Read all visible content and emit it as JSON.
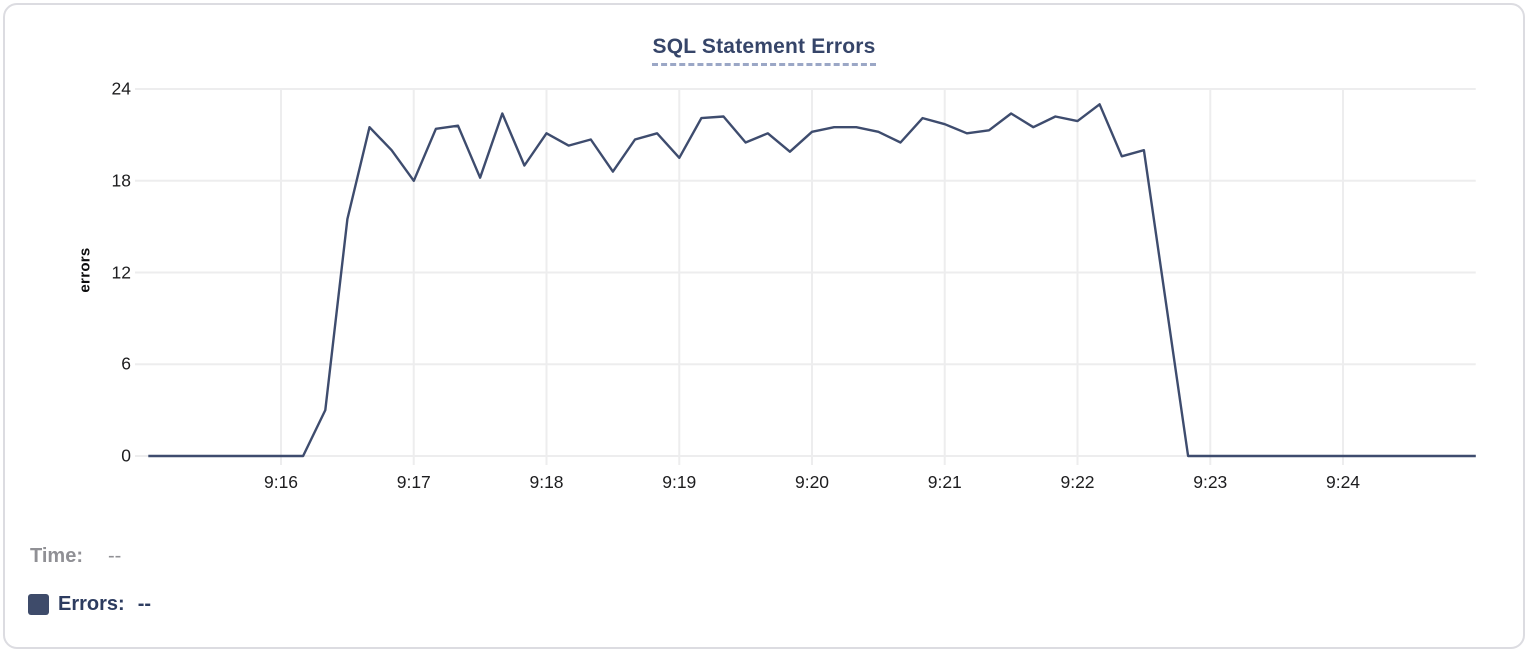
{
  "chart": {
    "title": "SQL Statement Errors",
    "ylabel": "errors"
  },
  "readout": {
    "time_label": "Time:",
    "time_value": "--",
    "errors_label": "Errors:",
    "errors_value": "--"
  },
  "chart_data": {
    "type": "line",
    "title": "SQL Statement Errors",
    "xlabel": "",
    "ylabel": "errors",
    "ylim": [
      0,
      24
    ],
    "y_ticks": [
      0,
      6,
      12,
      18,
      24
    ],
    "x_tick_labels": [
      "9:16",
      "9:17",
      "9:18",
      "9:19",
      "9:20",
      "9:21",
      "9:22",
      "9:23",
      "9:24"
    ],
    "x_range": [
      "9:15:00",
      "9:25:00"
    ],
    "sample_interval_seconds": 10,
    "grid": true,
    "legend_position": "bottom-left",
    "series": [
      {
        "name": "Errors",
        "color": "#3e4c6e",
        "start": "9:15:00",
        "values": [
          0,
          0,
          0,
          0,
          0,
          0,
          0,
          0,
          3,
          15.5,
          21.5,
          20,
          18,
          21.4,
          21.6,
          18.2,
          22.4,
          19,
          21.1,
          20.3,
          20.7,
          18.6,
          20.7,
          21.1,
          19.5,
          22.1,
          22.2,
          20.5,
          21.1,
          19.9,
          21.2,
          21.5,
          21.5,
          21.2,
          20.5,
          22.1,
          21.7,
          21.1,
          21.3,
          22.4,
          21.5,
          22.2,
          21.9,
          23,
          19.6,
          20,
          10,
          0,
          0,
          0,
          0,
          0,
          0,
          0,
          0,
          0,
          0,
          0,
          0,
          0,
          0
        ]
      }
    ]
  },
  "colors": {
    "line": "#3e4c6e",
    "grid": "#ededee",
    "title": "#364569",
    "title_underline": "#9ba7c6",
    "tick_label": "#1d1d1f",
    "time_label": "#909095",
    "errors_label": "#2d3c60",
    "swatch": "#3e4b6a",
    "card_border": "#dcdce1"
  }
}
